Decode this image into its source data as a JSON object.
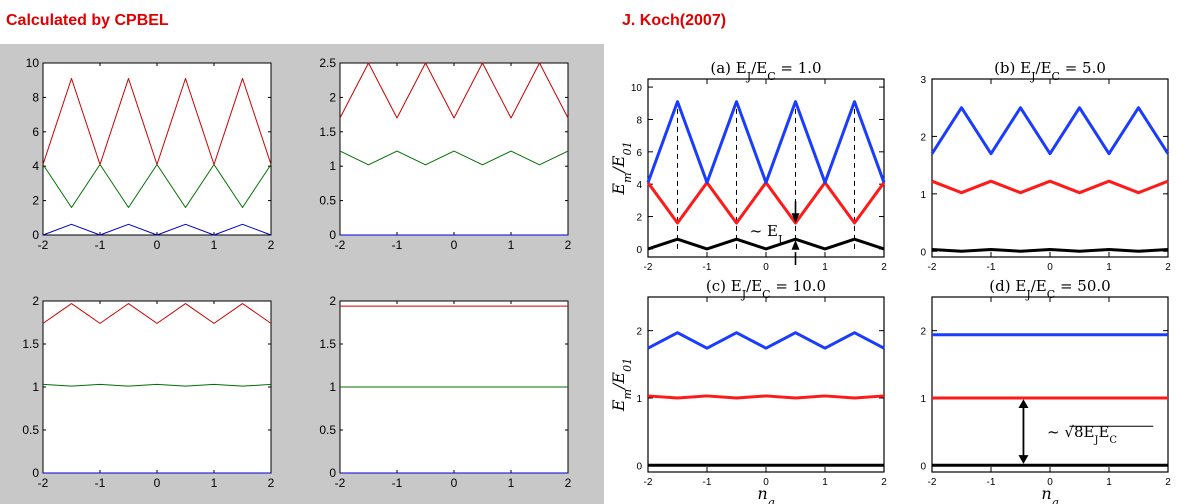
{
  "headers": {
    "left": "Calculated by CPBEL",
    "right": "J. Koch(2007)"
  },
  "colors": {
    "header_red": "#e00000",
    "matlab_blue": "#0000cc",
    "matlab_green": "#007000",
    "matlab_red": "#cc0000",
    "koch_black": "#000000",
    "koch_red": "#ff1a1a",
    "koch_blue": "#1a3cff",
    "left_background": "#c8c8c8"
  },
  "ylabel_text": "E_m/E_01",
  "xlabel_text": "n_g",
  "chart_data": [
    {
      "id": "cpbel-ej1",
      "type": "line",
      "style": "matlab",
      "title": "",
      "xlim": [
        -2,
        2
      ],
      "ylim": [
        0,
        10
      ],
      "xticks": [
        "-2",
        "-1",
        "0",
        "1",
        "2"
      ],
      "yticks": [
        "0",
        "2",
        "4",
        "6",
        "8",
        "10"
      ],
      "ytick_values": [
        0,
        2,
        4,
        6,
        8,
        10
      ],
      "show_xlabel": false,
      "show_ylabel": false,
      "series": [
        {
          "color": "#0000cc",
          "x": [
            -2,
            -1.5,
            -1,
            -0.5,
            0,
            0.5,
            1,
            1.5,
            2
          ],
          "y": [
            0,
            0.62,
            0,
            0.62,
            0,
            0.62,
            0,
            0.62,
            0
          ]
        },
        {
          "color": "#007000",
          "x": [
            -2,
            -1.5,
            -1,
            -0.5,
            0,
            0.5,
            1,
            1.5,
            2
          ],
          "y": [
            4.1,
            1.6,
            4.1,
            1.6,
            4.1,
            1.6,
            4.1,
            1.6,
            4.1
          ]
        },
        {
          "color": "#cc0000",
          "x": [
            -2,
            -1.5,
            -1,
            -0.5,
            0,
            0.5,
            1,
            1.5,
            2
          ],
          "y": [
            4.1,
            9.1,
            4.1,
            9.1,
            4.1,
            9.1,
            4.1,
            9.1,
            4.1
          ]
        }
      ]
    },
    {
      "id": "cpbel-ej5",
      "type": "line",
      "style": "matlab",
      "title": "",
      "xlim": [
        -2,
        2
      ],
      "ylim": [
        0,
        2.5
      ],
      "xticks": [
        "-2",
        "-1",
        "0",
        "1",
        "2"
      ],
      "yticks": [
        "0",
        "0.5",
        "1",
        "1.5",
        "2",
        "2.5"
      ],
      "ytick_values": [
        0,
        0.5,
        1,
        1.5,
        2,
        2.5
      ],
      "show_xlabel": false,
      "show_ylabel": false,
      "series": [
        {
          "color": "#0000cc",
          "x": [
            -2,
            2
          ],
          "y": [
            0,
            0
          ]
        },
        {
          "color": "#007000",
          "x": [
            -2,
            -1.5,
            -1,
            -0.5,
            0,
            0.5,
            1,
            1.5,
            2
          ],
          "y": [
            1.22,
            1.02,
            1.22,
            1.02,
            1.22,
            1.02,
            1.22,
            1.02,
            1.22
          ]
        },
        {
          "color": "#cc0000",
          "x": [
            -2,
            -1.5,
            -1,
            -0.5,
            0,
            0.5,
            1,
            1.5,
            2
          ],
          "y": [
            1.7,
            2.5,
            1.7,
            2.5,
            1.7,
            2.5,
            1.7,
            2.5,
            1.7
          ]
        }
      ]
    },
    {
      "id": "cpbel-ej10",
      "type": "line",
      "style": "matlab",
      "title": "",
      "xlim": [
        -2,
        2
      ],
      "ylim": [
        0,
        2
      ],
      "xticks": [
        "-2",
        "-1",
        "0",
        "1",
        "2"
      ],
      "yticks": [
        "0",
        "0.5",
        "1",
        "1.5",
        "2"
      ],
      "ytick_values": [
        0,
        0.5,
        1,
        1.5,
        2
      ],
      "show_xlabel": false,
      "show_ylabel": false,
      "series": [
        {
          "color": "#0000cc",
          "x": [
            -2,
            2
          ],
          "y": [
            0,
            0
          ]
        },
        {
          "color": "#007000",
          "x": [
            -2,
            -1.5,
            -1,
            -0.5,
            0,
            0.5,
            1,
            1.5,
            2
          ],
          "y": [
            1.03,
            1.01,
            1.03,
            1.01,
            1.03,
            1.01,
            1.03,
            1.01,
            1.03
          ]
        },
        {
          "color": "#cc0000",
          "x": [
            -2,
            -1.5,
            -1,
            -0.5,
            0,
            0.5,
            1,
            1.5,
            2
          ],
          "y": [
            1.74,
            1.97,
            1.74,
            1.97,
            1.74,
            1.97,
            1.74,
            1.97,
            1.74
          ]
        }
      ]
    },
    {
      "id": "cpbel-ej50",
      "type": "line",
      "style": "matlab",
      "title": "",
      "xlim": [
        -2,
        2
      ],
      "ylim": [
        0,
        2
      ],
      "xticks": [
        "-2",
        "-1",
        "0",
        "1",
        "2"
      ],
      "yticks": [
        "0",
        "0.5",
        "1",
        "1.5",
        "2"
      ],
      "ytick_values": [
        0,
        0.5,
        1,
        1.5,
        2
      ],
      "show_xlabel": false,
      "show_ylabel": false,
      "series": [
        {
          "color": "#0000cc",
          "x": [
            -2,
            2
          ],
          "y": [
            0,
            0
          ]
        },
        {
          "color": "#007000",
          "x": [
            -2,
            2
          ],
          "y": [
            1,
            1
          ]
        },
        {
          "color": "#cc0000",
          "x": [
            -2,
            2
          ],
          "y": [
            1.94,
            1.94
          ]
        }
      ]
    },
    {
      "id": "koch-a",
      "type": "line",
      "style": "koch",
      "title": "(a) E_J/E_C = 1.0",
      "xlim": [
        -2,
        2
      ],
      "ylim": [
        -0.5,
        10.5
      ],
      "xticks": [
        "-2",
        "-1",
        "0",
        "1",
        "2"
      ],
      "yticks": [
        "0",
        "2",
        "4",
        "6",
        "8",
        "10"
      ],
      "ytick_values": [
        0,
        2,
        4,
        6,
        8,
        10
      ],
      "show_xlabel": false,
      "show_ylabel": true,
      "series": [
        {
          "color": "#000000",
          "x": [
            -2,
            -1.5,
            -1,
            -0.5,
            0,
            0.5,
            1,
            1.5,
            2
          ],
          "y": [
            0,
            0.6,
            0,
            0.6,
            0,
            0.6,
            0,
            0.6,
            0
          ]
        },
        {
          "color": "#ff1a1a",
          "x": [
            -2,
            -1.5,
            -1,
            -0.5,
            0,
            0.5,
            1,
            1.5,
            2
          ],
          "y": [
            4.1,
            1.6,
            4.1,
            1.6,
            4.1,
            1.6,
            4.1,
            1.6,
            4.1
          ]
        },
        {
          "color": "#1a3cff",
          "x": [
            -2,
            -1.5,
            -1,
            -0.5,
            0,
            0.5,
            1,
            1.5,
            2
          ],
          "y": [
            4.1,
            9.1,
            4.1,
            9.1,
            4.1,
            9.1,
            4.1,
            9.1,
            4.1
          ]
        }
      ],
      "annotation": "~ E_J"
    },
    {
      "id": "koch-b",
      "type": "line",
      "style": "koch",
      "title": "(b) E_J/E_C = 5.0",
      "xlim": [
        -2,
        2
      ],
      "ylim": [
        -0.1,
        3
      ],
      "xticks": [
        "-2",
        "-1",
        "0",
        "1",
        "2"
      ],
      "yticks": [
        "0",
        "1",
        "2",
        "3"
      ],
      "ytick_values": [
        0,
        1,
        2,
        3
      ],
      "show_xlabel": false,
      "show_ylabel": false,
      "series": [
        {
          "color": "#000000",
          "x": [
            -2,
            -1.5,
            -1,
            -0.5,
            0,
            0.5,
            1,
            1.5,
            2
          ],
          "y": [
            0.03,
            0,
            0.03,
            0,
            0.03,
            0,
            0.03,
            0,
            0.03
          ]
        },
        {
          "color": "#ff1a1a",
          "x": [
            -2,
            -1.5,
            -1,
            -0.5,
            0,
            0.5,
            1,
            1.5,
            2
          ],
          "y": [
            1.22,
            1.02,
            1.22,
            1.02,
            1.22,
            1.02,
            1.22,
            1.02,
            1.22
          ]
        },
        {
          "color": "#1a3cff",
          "x": [
            -2,
            -1.5,
            -1,
            -0.5,
            0,
            0.5,
            1,
            1.5,
            2
          ],
          "y": [
            1.7,
            2.5,
            1.7,
            2.5,
            1.7,
            2.5,
            1.7,
            2.5,
            1.7
          ]
        }
      ]
    },
    {
      "id": "koch-c",
      "type": "line",
      "style": "koch",
      "title": "(c) E_J/E_C = 10.0",
      "xlim": [
        -2,
        2
      ],
      "ylim": [
        -0.1,
        2.5
      ],
      "xticks": [
        "-2",
        "-1",
        "0",
        "1",
        "2"
      ],
      "yticks": [
        "0",
        "1",
        "2"
      ],
      "ytick_values": [
        0,
        1,
        2
      ],
      "show_xlabel": true,
      "show_ylabel": true,
      "series": [
        {
          "color": "#000000",
          "x": [
            -2,
            2
          ],
          "y": [
            0,
            0
          ]
        },
        {
          "color": "#ff1a1a",
          "x": [
            -2,
            -1.5,
            -1,
            -0.5,
            0,
            0.5,
            1,
            1.5,
            2
          ],
          "y": [
            1.03,
            1.0,
            1.03,
            1.0,
            1.03,
            1.0,
            1.03,
            1.0,
            1.03
          ]
        },
        {
          "color": "#1a3cff",
          "x": [
            -2,
            -1.5,
            -1,
            -0.5,
            0,
            0.5,
            1,
            1.5,
            2
          ],
          "y": [
            1.74,
            1.97,
            1.74,
            1.97,
            1.74,
            1.97,
            1.74,
            1.97,
            1.74
          ]
        }
      ]
    },
    {
      "id": "koch-d",
      "type": "line",
      "style": "koch",
      "title": "(d) E_J/E_C = 50.0",
      "xlim": [
        -2,
        2
      ],
      "ylim": [
        -0.1,
        2.5
      ],
      "xticks": [
        "-2",
        "-1",
        "0",
        "1",
        "2"
      ],
      "yticks": [
        "0",
        "1",
        "2"
      ],
      "ytick_values": [
        0,
        1,
        2
      ],
      "show_xlabel": true,
      "show_ylabel": false,
      "series": [
        {
          "color": "#000000",
          "x": [
            -2,
            2
          ],
          "y": [
            0,
            0
          ]
        },
        {
          "color": "#ff1a1a",
          "x": [
            -2,
            2
          ],
          "y": [
            1,
            1
          ]
        },
        {
          "color": "#1a3cff",
          "x": [
            -2,
            2
          ],
          "y": [
            1.94,
            1.94
          ]
        }
      ],
      "annotation": "~ √(8E_J E_C)"
    }
  ]
}
